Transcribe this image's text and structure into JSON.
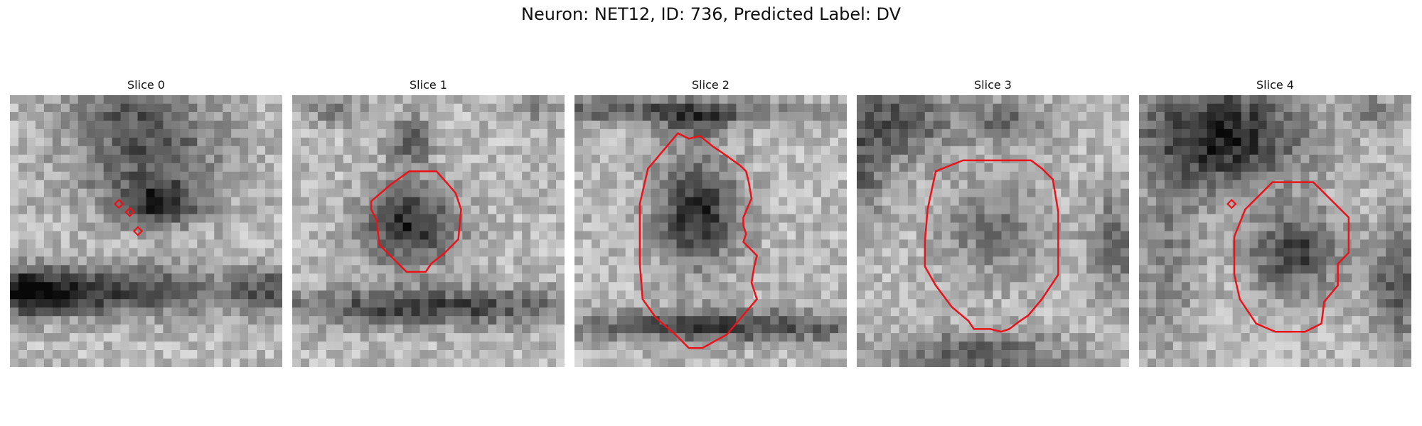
{
  "figure": {
    "title": "Neuron: NET12, ID: 736, Predicted Label: DV",
    "contour_color": "#e8141a"
  },
  "panels": [
    {
      "title": "Slice 0",
      "seed": 11,
      "blobs": [
        [
          0.5,
          0.2,
          0.28,
          0.2,
          -45
        ],
        [
          0.55,
          0.4,
          0.16,
          0.08,
          -55
        ],
        [
          0.28,
          0.72,
          0.55,
          0.09,
          -60
        ],
        [
          0.05,
          0.72,
          0.15,
          0.08,
          -40
        ],
        [
          0.95,
          0.72,
          0.12,
          0.08,
          -35
        ],
        [
          0.4,
          0.05,
          0.2,
          0.06,
          -20
        ]
      ],
      "contour": [
        [
          0.4,
          0.4
        ],
        [
          0.44,
          0.43
        ],
        [
          0.47,
          0.5
        ]
      ]
    },
    {
      "title": "Slice 1",
      "seed": 23,
      "blobs": [
        [
          0.43,
          0.48,
          0.17,
          0.14,
          -65
        ],
        [
          0.43,
          0.17,
          0.08,
          0.1,
          -40
        ],
        [
          0.5,
          0.78,
          0.55,
          0.07,
          -55
        ],
        [
          0.15,
          0.05,
          0.12,
          0.06,
          -25
        ],
        [
          0.9,
          0.05,
          0.08,
          0.06,
          -20
        ]
      ],
      "contour": [
        [
          0.36,
          0.33
        ],
        [
          0.43,
          0.28
        ],
        [
          0.53,
          0.28
        ],
        [
          0.6,
          0.36
        ],
        [
          0.62,
          0.42
        ],
        [
          0.61,
          0.53
        ],
        [
          0.56,
          0.58
        ],
        [
          0.51,
          0.62
        ],
        [
          0.49,
          0.65
        ],
        [
          0.42,
          0.65
        ],
        [
          0.32,
          0.55
        ],
        [
          0.31,
          0.46
        ],
        [
          0.29,
          0.42
        ],
        [
          0.29,
          0.39
        ]
      ]
    },
    {
      "title": "Slice 2",
      "seed": 37,
      "blobs": [
        [
          0.45,
          0.43,
          0.15,
          0.2,
          -65
        ],
        [
          0.3,
          0.06,
          0.55,
          0.05,
          -45
        ],
        [
          0.55,
          0.85,
          0.6,
          0.06,
          -55
        ],
        [
          0.45,
          0.1,
          0.12,
          0.06,
          -30
        ]
      ],
      "contour": [
        [
          0.38,
          0.14
        ],
        [
          0.42,
          0.16
        ],
        [
          0.46,
          0.15
        ],
        [
          0.51,
          0.19
        ],
        [
          0.54,
          0.21
        ],
        [
          0.61,
          0.26
        ],
        [
          0.63,
          0.28
        ],
        [
          0.64,
          0.32
        ],
        [
          0.65,
          0.38
        ],
        [
          0.62,
          0.45
        ],
        [
          0.62,
          0.48
        ],
        [
          0.63,
          0.51
        ],
        [
          0.62,
          0.54
        ],
        [
          0.65,
          0.57
        ],
        [
          0.67,
          0.59
        ],
        [
          0.66,
          0.63
        ],
        [
          0.65,
          0.69
        ],
        [
          0.67,
          0.75
        ],
        [
          0.56,
          0.88
        ],
        [
          0.47,
          0.93
        ],
        [
          0.42,
          0.93
        ],
        [
          0.37,
          0.88
        ],
        [
          0.3,
          0.82
        ],
        [
          0.25,
          0.75
        ],
        [
          0.24,
          0.62
        ],
        [
          0.24,
          0.4
        ],
        [
          0.27,
          0.27
        ]
      ]
    },
    {
      "title": "Slice 3",
      "seed": 53,
      "blobs": [
        [
          0.5,
          0.5,
          0.18,
          0.18,
          -30
        ],
        [
          0.15,
          0.1,
          0.2,
          0.15,
          -45
        ],
        [
          0.55,
          0.1,
          0.15,
          0.08,
          -35
        ],
        [
          0.95,
          0.55,
          0.1,
          0.2,
          -35
        ],
        [
          0.45,
          0.95,
          0.35,
          0.08,
          -40
        ],
        [
          0.02,
          0.3,
          0.08,
          0.2,
          -35
        ]
      ],
      "contour": [
        [
          0.29,
          0.28
        ],
        [
          0.39,
          0.24
        ],
        [
          0.64,
          0.24
        ],
        [
          0.68,
          0.27
        ],
        [
          0.72,
          0.31
        ],
        [
          0.73,
          0.37
        ],
        [
          0.74,
          0.43
        ],
        [
          0.74,
          0.66
        ],
        [
          0.68,
          0.75
        ],
        [
          0.63,
          0.81
        ],
        [
          0.6,
          0.83
        ],
        [
          0.56,
          0.86
        ],
        [
          0.53,
          0.87
        ],
        [
          0.49,
          0.86
        ],
        [
          0.43,
          0.86
        ],
        [
          0.41,
          0.83
        ],
        [
          0.35,
          0.78
        ],
        [
          0.29,
          0.7
        ],
        [
          0.25,
          0.63
        ],
        [
          0.25,
          0.54
        ],
        [
          0.26,
          0.42
        ]
      ]
    },
    {
      "title": "Slice 4",
      "seed": 71,
      "blobs": [
        [
          0.3,
          0.15,
          0.3,
          0.2,
          -70
        ],
        [
          0.58,
          0.58,
          0.17,
          0.14,
          -55
        ],
        [
          0.95,
          0.7,
          0.1,
          0.22,
          -45
        ],
        [
          0.1,
          0.6,
          0.12,
          0.3,
          -25
        ],
        [
          0.85,
          0.05,
          0.1,
          0.06,
          -25
        ]
      ],
      "contour": [
        [
          0.39,
          0.42
        ],
        [
          0.49,
          0.32
        ],
        [
          0.64,
          0.32
        ],
        [
          0.71,
          0.39
        ],
        [
          0.77,
          0.45
        ],
        [
          0.77,
          0.58
        ],
        [
          0.73,
          0.62
        ],
        [
          0.73,
          0.7
        ],
        [
          0.68,
          0.76
        ],
        [
          0.67,
          0.84
        ],
        [
          0.61,
          0.87
        ],
        [
          0.5,
          0.87
        ],
        [
          0.43,
          0.84
        ],
        [
          0.37,
          0.75
        ],
        [
          0.35,
          0.66
        ],
        [
          0.35,
          0.52
        ]
      ],
      "marker": [
        0.34,
        0.4
      ]
    }
  ]
}
